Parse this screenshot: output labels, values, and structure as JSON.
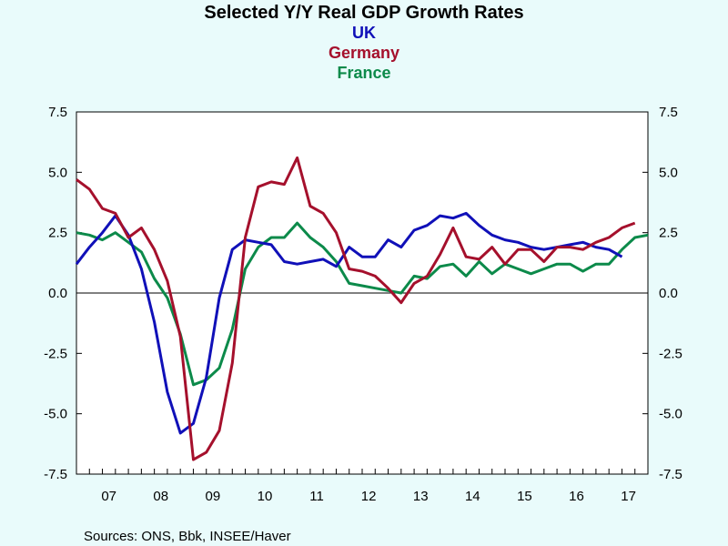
{
  "chart_data": {
    "type": "line",
    "title": "Selected Y/Y Real GDP Growth Rates",
    "source": "Sources:  ONS, Bbk, INSEE/Haver",
    "colors": {
      "UK": "#1010b8",
      "Germany": "#a5102c",
      "France": "#0c8a4a",
      "zero_line": "#000000"
    },
    "x_start": 2006.875,
    "x_step": 0.25,
    "xlim": [
      2006.875,
      2017.875
    ],
    "ylim": [
      -7.5,
      7.5
    ],
    "y_ticks": [
      "7.5",
      "5.0",
      "2.5",
      "0.0",
      "-2.5",
      "-5.0",
      "-7.5"
    ],
    "x_tick_labels": [
      "07",
      "08",
      "09",
      "10",
      "11",
      "12",
      "13",
      "14",
      "15",
      "16",
      "17"
    ],
    "grid": false,
    "legend_position": "top-center",
    "series": [
      {
        "name": "UK",
        "values": [
          1.2,
          1.9,
          2.5,
          3.2,
          2.4,
          1.0,
          -1.2,
          -4.1,
          -5.8,
          -5.4,
          -3.5,
          -0.2,
          1.8,
          2.2,
          2.1,
          2.0,
          1.3,
          1.2,
          1.3,
          1.4,
          1.1,
          1.9,
          1.5,
          1.5,
          2.2,
          1.9,
          2.6,
          2.8,
          3.2,
          3.1,
          3.3,
          2.8,
          2.4,
          2.2,
          2.1,
          1.9,
          1.8,
          1.9,
          2.0,
          2.1,
          1.9,
          1.8,
          1.5
        ]
      },
      {
        "name": "Germany",
        "values": [
          4.7,
          4.3,
          3.5,
          3.3,
          2.3,
          2.7,
          1.8,
          0.5,
          -1.8,
          -6.9,
          -6.6,
          -5.7,
          -2.9,
          2.3,
          4.4,
          4.6,
          4.5,
          5.6,
          3.6,
          3.3,
          2.5,
          1.0,
          0.9,
          0.7,
          0.2,
          -0.4,
          0.4,
          0.7,
          1.6,
          2.7,
          1.5,
          1.4,
          1.9,
          1.2,
          1.8,
          1.8,
          1.3,
          1.9,
          1.9,
          1.8,
          2.1,
          2.3,
          2.7,
          2.9
        ]
      },
      {
        "name": "France",
        "values": [
          2.5,
          2.4,
          2.2,
          2.5,
          2.1,
          1.7,
          0.6,
          -0.2,
          -1.7,
          -3.8,
          -3.6,
          -3.1,
          -1.5,
          1.0,
          1.9,
          2.3,
          2.3,
          2.9,
          2.3,
          1.9,
          1.3,
          0.4,
          0.3,
          0.2,
          0.1,
          0.0,
          0.7,
          0.6,
          1.1,
          1.2,
          0.7,
          1.3,
          0.8,
          1.2,
          1.0,
          0.8,
          1.0,
          1.2,
          1.2,
          0.9,
          1.2,
          1.2,
          1.8,
          2.3,
          2.4
        ]
      }
    ]
  }
}
